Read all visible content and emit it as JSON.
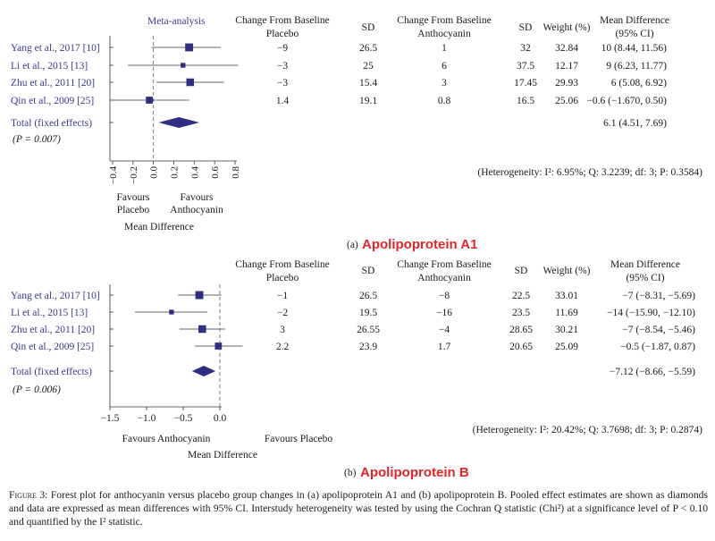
{
  "colors": {
    "marker": "#2e2e82",
    "label": "#3a3a8c",
    "panel_title": "#e0252b",
    "axis": "#333333"
  },
  "chart_data": [
    {
      "type": "forest",
      "panel": "(a)",
      "title": "Apolipoprotein A1",
      "header": {
        "study": "Meta-analysis",
        "placebo_change_1": "Change From Baseline",
        "placebo_change_2": "Placebo",
        "sd_placebo": "SD",
        "anthocyanin_change_1": "Change From Baseline",
        "anthocyanin_change_2": "Anthocyanin",
        "sd_anthocyanin": "SD",
        "weight": "Weight (%)",
        "md_1": "Mean Difference",
        "md_2": "(95% CI)"
      },
      "studies": [
        {
          "name": "Yang et al., 2017 [10]",
          "placebo_change": "−9",
          "placebo_sd": "26.5",
          "antho_change": "1",
          "antho_sd": "32",
          "weight": "32.84",
          "md_text": "10 (8.44, 11.56)",
          "point": 0.35,
          "ci_low": -0.02,
          "ci_high": 0.66
        },
        {
          "name": "Li et al., 2015 [13]",
          "placebo_change": "−3",
          "placebo_sd": "25",
          "antho_change": "6",
          "antho_sd": "37.5",
          "weight": "12.17",
          "md_text": "9 (6.23, 11.77)",
          "point": 0.29,
          "ci_low": -0.25,
          "ci_high": 0.83
        },
        {
          "name": "Zhu et al., 2011 [20]",
          "placebo_change": "−3",
          "placebo_sd": "15.4",
          "antho_change": "3",
          "antho_sd": "17.45",
          "weight": "29.93",
          "md_text": "6 (5.08, 6.92)",
          "point": 0.36,
          "ci_low": 0.03,
          "ci_high": 0.69
        },
        {
          "name": "Qin et al., 2009 [25]",
          "placebo_change": "1.4",
          "placebo_sd": "19.1",
          "antho_change": "0.8",
          "antho_sd": "16.5",
          "weight": "25.06",
          "md_text": "−0.6 (−1.670, 0.50)",
          "point": -0.04,
          "ci_low": -0.4,
          "ci_high": 0.35
        }
      ],
      "total": {
        "label": "Total (fixed effects)",
        "md_text": "6.1 (4.51, 7.69)",
        "point": 0.25,
        "ci_low": 0.05,
        "ci_high": 0.45
      },
      "p_value": "(P = 0.007)",
      "heterogeneity": "(Heterogeneity: I²: 6.95%; Q: 3.2239; df: 3; P: 0.3584)",
      "axis": {
        "min": -0.4,
        "max": 0.8,
        "ticks": [
          "−0.4",
          "−0.2",
          "0.0",
          "0.2",
          "0.4",
          "0.6",
          "0.8"
        ],
        "tick_values": [
          -0.4,
          -0.2,
          0.0,
          0.2,
          0.4,
          0.6,
          0.8
        ]
      },
      "favours_left_1": "Favours",
      "favours_left_2": "Placebo",
      "favours_right_1": "Favours",
      "favours_right_2": "Anthocyanin",
      "xlabel": "Mean Difference"
    },
    {
      "type": "forest",
      "panel": "(b)",
      "title": "Apolipoprotein B",
      "header": {
        "placebo_change_1": "Change From Baseline",
        "placebo_change_2": "Placebo",
        "sd_placebo": "SD",
        "anthocyanin_change_1": "Change From Baseline",
        "anthocyanin_change_2": "Anthocyanin",
        "sd_anthocyanin": "SD",
        "weight": "Weight (%)",
        "md_1": "Mean Difference",
        "md_2": "(95% CI)"
      },
      "studies": [
        {
          "name": "Yang et al., 2017 [10]",
          "placebo_change": "−1",
          "placebo_sd": "26.5",
          "antho_change": "−8",
          "antho_sd": "22.5",
          "weight": "33.01",
          "md_text": "−7 (−8.31, −5.69)",
          "point": -0.28,
          "ci_low": -0.57,
          "ci_high": 0.02
        },
        {
          "name": "Li et al., 2015 [13]",
          "placebo_change": "−2",
          "placebo_sd": "19.5",
          "antho_change": "−16",
          "antho_sd": "23.5",
          "weight": "11.69",
          "md_text": "−14 (−15.90, −12.10)",
          "point": -0.66,
          "ci_low": -1.16,
          "ci_high": -0.17
        },
        {
          "name": "Zhu et al., 2011 [20]",
          "placebo_change": "3",
          "placebo_sd": "26.55",
          "antho_change": "−4",
          "antho_sd": "28.65",
          "weight": "30.21",
          "md_text": "−7 (−8.54, −5.46)",
          "point": -0.24,
          "ci_low": -0.55,
          "ci_high": 0.07
        },
        {
          "name": "Qin et al., 2009 [25]",
          "placebo_change": "2.2",
          "placebo_sd": "23.9",
          "antho_change": "1.7",
          "antho_sd": "20.65",
          "weight": "25.09",
          "md_text": "−0.5 (−1.87, 0.87)",
          "point": -0.02,
          "ci_low": -0.34,
          "ci_high": 0.31
        }
      ],
      "total": {
        "label": "Total (fixed effects)",
        "md_text": "−7.12 (−8.66, −5.59)",
        "point": -0.22,
        "ci_low": -0.38,
        "ci_high": -0.06
      },
      "p_value": "(P = 0.006)",
      "heterogeneity": "(Heterogeneity: I²: 20.42%; Q: 3.7698; df: 3; P: 0.2874)",
      "axis": {
        "min": -1.5,
        "max": 0.0,
        "ticks": [
          "−1.5",
          "−1.0",
          "−0.5",
          "0.0"
        ],
        "tick_values": [
          -1.5,
          -1.0,
          -0.5,
          0.0
        ]
      },
      "favours_left_1": "Favours Anthocyanin",
      "favours_right_1": "Favours Placebo",
      "xlabel": "Mean Difference"
    }
  ],
  "caption": {
    "figure_label": "Figure 3:",
    "text": "Forest plot for anthocyanin versus placebo group changes in (a) apolipoprotein A1 and (b) apolipoprotein B. Pooled effect estimates are shown as diamonds and data are expressed as mean differences with 95% CI. Interstudy heterogeneity was tested by using the Cochran Q statistic (Chi²) at a significance level of P < 0.10 and quantified by the I² statistic."
  }
}
